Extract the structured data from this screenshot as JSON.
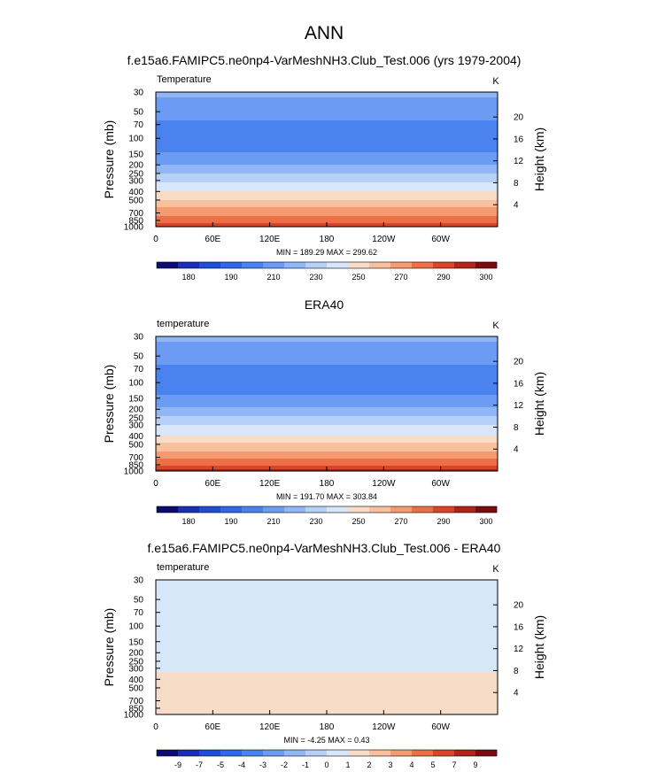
{
  "figure_title": "ANN",
  "lon_ticks": [
    "0",
    "60E",
    "120E",
    "180",
    "120W",
    "60W"
  ],
  "chart_data": [
    {
      "type": "heatmap",
      "title": "f.e15a6.FAMIPC5.ne0np4-VarMeshNH3.Club_Test.006 (yrs 1979-2004)",
      "variable_label": "Temperature",
      "units": "K",
      "xlabel": "",
      "ylabel": "Pressure (mb)",
      "ylabel_right": "Height (km)",
      "x_ticks": [
        0,
        60,
        120,
        180,
        240,
        300
      ],
      "xlim": [
        0,
        360
      ],
      "pressure_ticks": [
        30,
        50,
        70,
        100,
        150,
        200,
        250,
        300,
        400,
        500,
        700,
        850,
        1000
      ],
      "pressure_range": [
        30,
        1000
      ],
      "height_ticks": [
        4,
        8,
        12,
        16,
        20
      ],
      "stats_text": "MIN = 189.29  MAX = 299.62",
      "contour_levels": [
        180,
        185,
        190,
        200,
        210,
        220,
        230,
        240,
        250,
        260,
        270,
        280,
        290,
        295,
        300
      ],
      "colorbar_labels": [
        "180",
        "190",
        "210",
        "230",
        "250",
        "270",
        "290",
        "300"
      ],
      "colorbar_colors": [
        "#0b0b72",
        "#1a2fb5",
        "#1f4ddb",
        "#2f68e8",
        "#4a82ef",
        "#6b9bf3",
        "#90b6f6",
        "#b6d0f8",
        "#d8e6fa",
        "#f7ddc8",
        "#f8c09d",
        "#f49b72",
        "#ec6f46",
        "#d9452a",
        "#b1231b",
        "#7a0b10"
      ],
      "profile": [
        {
          "p": 30,
          "T": 222
        },
        {
          "p": 50,
          "T": 215
        },
        {
          "p": 70,
          "T": 207
        },
        {
          "p": 100,
          "T": 201
        },
        {
          "p": 150,
          "T": 211
        },
        {
          "p": 200,
          "T": 220
        },
        {
          "p": 250,
          "T": 230
        },
        {
          "p": 300,
          "T": 238
        },
        {
          "p": 400,
          "T": 250
        },
        {
          "p": 500,
          "T": 260
        },
        {
          "p": 700,
          "T": 277
        },
        {
          "p": 850,
          "T": 287
        },
        {
          "p": 1000,
          "T": 296
        }
      ]
    },
    {
      "type": "heatmap",
      "title": "ERA40",
      "variable_label": "temperature",
      "units": "K",
      "xlabel": "",
      "ylabel": "Pressure (mb)",
      "ylabel_right": "Height (km)",
      "x_ticks": [
        0,
        60,
        120,
        180,
        240,
        300
      ],
      "xlim": [
        0,
        360
      ],
      "pressure_ticks": [
        30,
        50,
        70,
        100,
        150,
        200,
        250,
        300,
        400,
        500,
        700,
        850,
        1000
      ],
      "pressure_range": [
        30,
        1000
      ],
      "height_ticks": [
        4,
        8,
        12,
        16,
        20
      ],
      "stats_text": "MIN = 191.70  MAX = 303.84",
      "contour_levels": [
        180,
        185,
        190,
        200,
        210,
        220,
        230,
        240,
        250,
        260,
        270,
        280,
        290,
        295,
        300
      ],
      "colorbar_labels": [
        "180",
        "190",
        "210",
        "230",
        "250",
        "270",
        "290",
        "300"
      ],
      "colorbar_colors": [
        "#0b0b72",
        "#1a2fb5",
        "#1f4ddb",
        "#2f68e8",
        "#4a82ef",
        "#6b9bf3",
        "#90b6f6",
        "#b6d0f8",
        "#d8e6fa",
        "#f7ddc8",
        "#f8c09d",
        "#f49b72",
        "#ec6f46",
        "#d9452a",
        "#b1231b",
        "#7a0b10"
      ],
      "profile": [
        {
          "p": 30,
          "T": 222
        },
        {
          "p": 50,
          "T": 215
        },
        {
          "p": 70,
          "T": 207
        },
        {
          "p": 100,
          "T": 202
        },
        {
          "p": 150,
          "T": 212
        },
        {
          "p": 200,
          "T": 221
        },
        {
          "p": 250,
          "T": 231
        },
        {
          "p": 300,
          "T": 239
        },
        {
          "p": 400,
          "T": 251
        },
        {
          "p": 500,
          "T": 261
        },
        {
          "p": 700,
          "T": 278
        },
        {
          "p": 850,
          "T": 289
        },
        {
          "p": 1000,
          "T": 297
        }
      ]
    },
    {
      "type": "heatmap",
      "title": "f.e15a6.FAMIPC5.ne0np4-VarMeshNH3.Club_Test.006 - ERA40",
      "variable_label": "temperature",
      "units": "K",
      "xlabel": "",
      "ylabel": "Pressure (mb)",
      "ylabel_right": "Height (km)",
      "x_ticks": [
        0,
        60,
        120,
        180,
        240,
        300
      ],
      "xlim": [
        0,
        360
      ],
      "pressure_ticks": [
        30,
        50,
        70,
        100,
        150,
        200,
        250,
        300,
        400,
        500,
        700,
        850,
        1000
      ],
      "pressure_range": [
        30,
        1000
      ],
      "height_ticks": [
        4,
        8,
        12,
        16,
        20
      ],
      "stats_text": "MIN = -4.25  MAX =  0.43",
      "contour_levels": [
        -9,
        -8,
        -7,
        -6,
        -5,
        -4,
        -3,
        -2,
        -1,
        0,
        1,
        2,
        3,
        4,
        5,
        7,
        9
      ],
      "colorbar_labels": [
        "-9",
        "-7",
        "-5",
        "-4",
        "-3",
        "-2",
        "-1",
        "0",
        "1",
        "2",
        "3",
        "4",
        "5",
        "7",
        "9"
      ],
      "colorbar_colors": [
        "#0b0b72",
        "#1a2fb5",
        "#1f4ddb",
        "#2f68e8",
        "#4a82ef",
        "#6b9bf3",
        "#90b6f6",
        "#b6d0f8",
        "#d8e6fa",
        "#f7ddc8",
        "#f8c09d",
        "#f49b72",
        "#ec6f46",
        "#d9452a",
        "#b1231b",
        "#7a0b10"
      ],
      "profile": [
        {
          "p": 30,
          "T": -1.0
        },
        {
          "p": 50,
          "T": -1.6
        },
        {
          "p": 70,
          "T": -1.3
        },
        {
          "p": 100,
          "T": -1.7
        },
        {
          "p": 150,
          "T": -1.4
        },
        {
          "p": 200,
          "T": -1.6
        },
        {
          "p": 250,
          "T": -1.3
        },
        {
          "p": 300,
          "T": -1.1
        },
        {
          "p": 400,
          "T": -0.8
        },
        {
          "p": 500,
          "T": -0.7
        },
        {
          "p": 700,
          "T": -1.0
        },
        {
          "p": 850,
          "T": -0.9
        },
        {
          "p": 1000,
          "T": -0.6
        }
      ]
    }
  ]
}
